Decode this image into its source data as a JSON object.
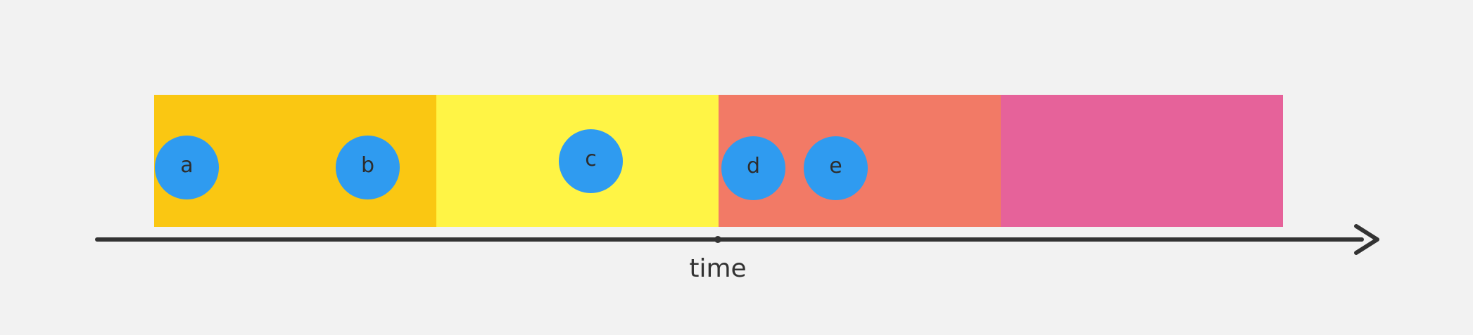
{
  "timeline": {
    "axis_label": "time",
    "axis_color": "#333333",
    "segment_colors": [
      "#fac712",
      "#fff445",
      "#f27a66",
      "#e6629a"
    ],
    "event_color": "#2f9bf0",
    "events": [
      {
        "label": "a"
      },
      {
        "label": "b"
      },
      {
        "label": "c"
      },
      {
        "label": "d"
      },
      {
        "label": "e"
      }
    ]
  }
}
